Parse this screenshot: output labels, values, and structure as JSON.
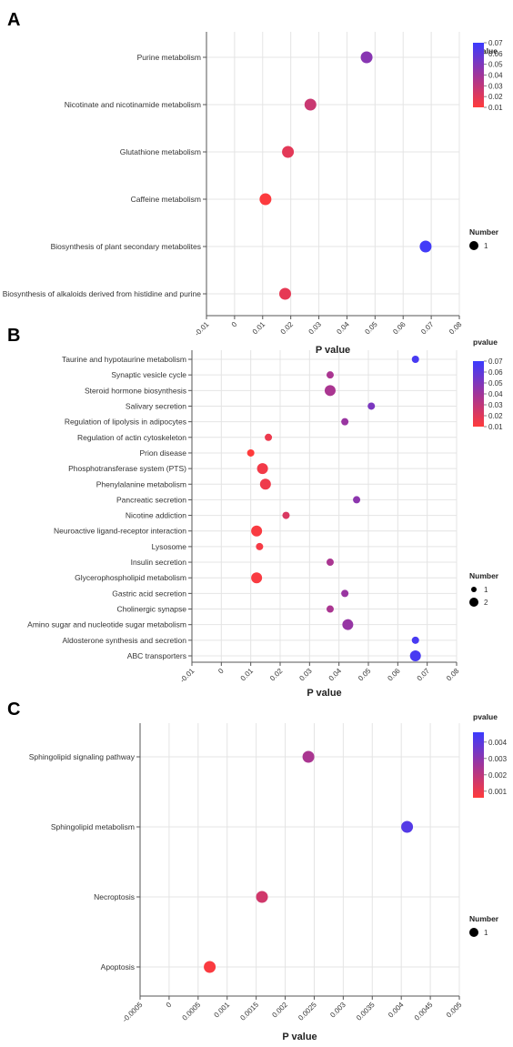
{
  "colors": {
    "low": "#ff3b3b",
    "mid": "#a0359a",
    "high": "#3b3bff",
    "grid": "#e4e4e4",
    "axis": "#555555"
  },
  "chart_data": [
    {
      "id": "A",
      "type": "scatter",
      "panel_label": "A",
      "xlabel": "P value",
      "xlim": [
        -0.01,
        0.08
      ],
      "xticks": [
        "-0.01",
        "0",
        "0.01",
        "0.02",
        "0.03",
        "0.04",
        "0.05",
        "0.06",
        "0.07",
        "0.08"
      ],
      "xtick_values": [
        -0.01,
        0,
        0.01,
        0.02,
        0.03,
        0.04,
        0.05,
        0.06,
        0.07,
        0.08
      ],
      "color_title": "pvalue",
      "color_range": [
        0.01,
        0.07
      ],
      "color_ticks": [
        "0.07",
        "0.06",
        "0.05",
        "0.04",
        "0.03",
        "0.02",
        "0.01"
      ],
      "color_tick_values": [
        0.07,
        0.06,
        0.05,
        0.04,
        0.03,
        0.02,
        0.01
      ],
      "size_title": "Number",
      "size_legend": [
        "1"
      ],
      "categories": [
        "Purine metabolism",
        "Nicotinate and nicotinamide metabolism",
        "Glutathione metabolism",
        "Caffeine metabolism",
        "Biosynthesis of plant secondary metabolites",
        "Biosynthesis of alkaloids derived from histidine and purine"
      ],
      "points": [
        {
          "category": "Purine metabolism",
          "x": 0.047,
          "number": 1
        },
        {
          "category": "Nicotinate and nicotinamide metabolism",
          "x": 0.027,
          "number": 1
        },
        {
          "category": "Glutathione metabolism",
          "x": 0.019,
          "number": 1
        },
        {
          "category": "Caffeine metabolism",
          "x": 0.011,
          "number": 1
        },
        {
          "category": "Biosynthesis of plant secondary metabolites",
          "x": 0.068,
          "number": 1
        },
        {
          "category": "Biosynthesis of alkaloids derived from histidine and purine",
          "x": 0.018,
          "number": 1
        }
      ]
    },
    {
      "id": "B",
      "type": "scatter",
      "panel_label": "B",
      "xlabel": "P value",
      "xlim": [
        -0.01,
        0.08
      ],
      "xticks": [
        "-0.01",
        "0",
        "0.01",
        "0.02",
        "0.03",
        "0.04",
        "0.05",
        "0.06",
        "0.07",
        "0.08"
      ],
      "xtick_values": [
        -0.01,
        0,
        0.01,
        0.02,
        0.03,
        0.04,
        0.05,
        0.06,
        0.07,
        0.08
      ],
      "color_title": "pvalue",
      "color_range": [
        0.01,
        0.07
      ],
      "color_ticks": [
        "0.07",
        "0.06",
        "0.05",
        "0.04",
        "0.03",
        "0.02",
        "0.01"
      ],
      "color_tick_values": [
        0.07,
        0.06,
        0.05,
        0.04,
        0.03,
        0.02,
        0.01
      ],
      "size_title": "Number",
      "size_legend": [
        "1",
        "2"
      ],
      "categories": [
        "Taurine and hypotaurine metabolism",
        "Synaptic vesicle cycle",
        "Steroid hormone biosynthesis",
        "Salivary secretion",
        "Regulation of lipolysis in adipocytes",
        "Regulation of actin cytoskeleton",
        "Prion disease",
        "Phosphotransferase system (PTS)",
        "Phenylalanine metabolism",
        "Pancreatic secretion",
        "Nicotine addiction",
        "Neuroactive ligand-receptor interaction",
        "Lysosome",
        "Insulin secretion",
        "Glycerophospholipid metabolism",
        "Gastric acid secretion",
        "Cholinergic synapse",
        "Amino sugar and nucleotide sugar metabolism",
        "Aldosterone synthesis and secretion",
        "ABC transporters"
      ],
      "points": [
        {
          "category": "Taurine and hypotaurine metabolism",
          "x": 0.066,
          "number": 1
        },
        {
          "category": "Synaptic vesicle cycle",
          "x": 0.037,
          "number": 1
        },
        {
          "category": "Steroid hormone biosynthesis",
          "x": 0.037,
          "number": 2
        },
        {
          "category": "Salivary secretion",
          "x": 0.051,
          "number": 1
        },
        {
          "category": "Regulation of lipolysis in adipocytes",
          "x": 0.042,
          "number": 1
        },
        {
          "category": "Regulation of actin cytoskeleton",
          "x": 0.016,
          "number": 1
        },
        {
          "category": "Prion disease",
          "x": 0.01,
          "number": 1
        },
        {
          "category": "Phosphotransferase system (PTS)",
          "x": 0.014,
          "number": 2
        },
        {
          "category": "Phenylalanine metabolism",
          "x": 0.015,
          "number": 2
        },
        {
          "category": "Pancreatic secretion",
          "x": 0.046,
          "number": 1
        },
        {
          "category": "Nicotine addiction",
          "x": 0.022,
          "number": 1
        },
        {
          "category": "Neuroactive ligand-receptor interaction",
          "x": 0.012,
          "number": 2
        },
        {
          "category": "Lysosome",
          "x": 0.013,
          "number": 1
        },
        {
          "category": "Insulin secretion",
          "x": 0.037,
          "number": 1
        },
        {
          "category": "Glycerophospholipid metabolism",
          "x": 0.012,
          "number": 2
        },
        {
          "category": "Gastric acid secretion",
          "x": 0.042,
          "number": 1
        },
        {
          "category": "Cholinergic synapse",
          "x": 0.037,
          "number": 1
        },
        {
          "category": "Amino sugar and nucleotide sugar metabolism",
          "x": 0.043,
          "number": 2
        },
        {
          "category": "Aldosterone synthesis and secretion",
          "x": 0.066,
          "number": 1
        },
        {
          "category": "ABC transporters",
          "x": 0.066,
          "number": 2
        }
      ]
    },
    {
      "id": "C",
      "type": "scatter",
      "panel_label": "C",
      "xlabel": "P value",
      "xlim": [
        -0.0005,
        0.005
      ],
      "xticks": [
        "-0.0005",
        "0",
        "0.0005",
        "0.001",
        "0.0015",
        "0.002",
        "0.0025",
        "0.003",
        "0.0035",
        "0.004",
        "0.0045",
        "0.005"
      ],
      "xtick_values": [
        -0.0005,
        0,
        0.0005,
        0.001,
        0.0015,
        0.002,
        0.0025,
        0.003,
        0.0035,
        0.004,
        0.0045,
        0.005
      ],
      "color_title": "pvalue",
      "color_range": [
        0.0006,
        0.0046
      ],
      "color_ticks": [
        "0.004",
        "0.003",
        "0.002",
        "0.001"
      ],
      "color_tick_values": [
        0.004,
        0.003,
        0.002,
        0.001
      ],
      "size_title": "Number",
      "size_legend": [
        "1"
      ],
      "categories": [
        "Sphingolipid signaling pathway",
        "Sphingolipid metabolism",
        "Necroptosis",
        "Apoptosis"
      ],
      "points": [
        {
          "category": "Sphingolipid signaling pathway",
          "x": 0.0024,
          "number": 1
        },
        {
          "category": "Sphingolipid metabolism",
          "x": 0.0041,
          "number": 1
        },
        {
          "category": "Necroptosis",
          "x": 0.0016,
          "number": 1
        },
        {
          "category": "Apoptosis",
          "x": 0.0007,
          "number": 1
        }
      ]
    }
  ]
}
